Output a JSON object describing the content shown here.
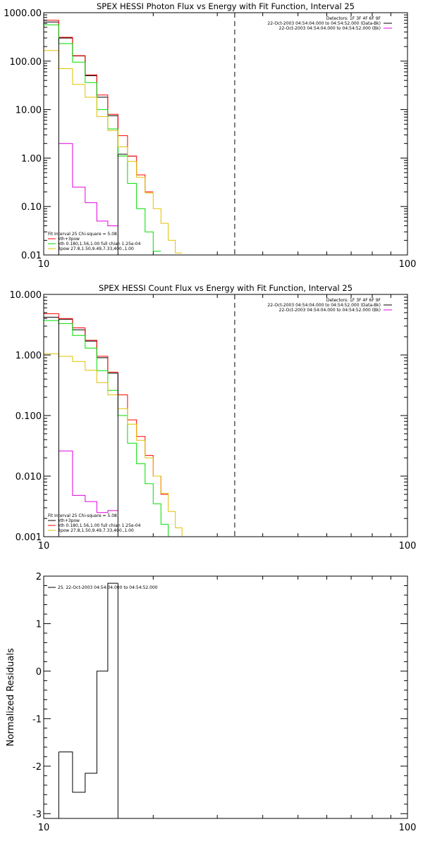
{
  "colors": {
    "axis": "#000000",
    "black": "#000000",
    "red": "#ff0000",
    "green": "#00dd00",
    "yellow": "#e0c000",
    "magenta": "#e000e0"
  },
  "chart_data": [
    {
      "type": "line",
      "step": true,
      "title": "SPEX HESSI Photon Flux vs Energy with Fit Function, Interval 25",
      "xlabel": "",
      "ylabel": "",
      "xscale": "log",
      "yscale": "log",
      "xlim": [
        10,
        100
      ],
      "ylim": [
        0.01,
        1000
      ],
      "xticks": [
        {
          "v": 10,
          "label": "10"
        },
        {
          "v": 100,
          "label": "100"
        }
      ],
      "yticks": [
        {
          "v": 1000,
          "label": "1000.00"
        },
        {
          "v": 100,
          "label": "100.00"
        },
        {
          "v": 10,
          "label": "10.00"
        },
        {
          "v": 1,
          "label": "1.00"
        },
        {
          "v": 0.1,
          "label": "0.10"
        },
        {
          "v": 0.01,
          "label": "0.01"
        }
      ],
      "dashed_vline_x": 33.5,
      "header_lines": [
        "Detectors: 1F 3F 4F 6F 9F",
        "22-Oct-2003 04:54:04.000 to 04:54:52.000 (Data-Bk)",
        "22-Oct-2003 04:54:04.000 to 04:54:52.000 (Bk)"
      ],
      "header_colors": [
        "",
        "#000000",
        "#e000e0"
      ],
      "legend_position": "bottom-left",
      "legend_lines": [
        "Fit Interval 25   Chi-square = 5.08",
        "vth+3pow",
        "vth 0.180,1.56,1.00  full chian 1.25e-04",
        "3pow 27.8,1.50,9.49,7.33,400.,1.00"
      ],
      "legend_colors": [
        "",
        "#ff0000",
        "#00dd00",
        "#e0c000"
      ],
      "edges": [
        10,
        11,
        12,
        13,
        14,
        15,
        16,
        17,
        18,
        19,
        20,
        21,
        22,
        23,
        24,
        25,
        26,
        27,
        28,
        29,
        30,
        31,
        32,
        33,
        34,
        35,
        36,
        37,
        38
      ],
      "series": [
        {
          "color": "#000000",
          "from": 0,
          "values": [
            640,
            300,
            128,
            50,
            18,
            7.5,
            1.2,
            1.1
          ]
        },
        {
          "color": "#ff0000",
          "from": 0,
          "values": [
            700,
            310,
            130,
            52,
            20,
            8.0,
            2.9,
            1.1,
            0.45,
            0.2
          ]
        },
        {
          "color": "#00dd00",
          "from": 0,
          "values": [
            560,
            230,
            95,
            36,
            10,
            4.0,
            1.1,
            0.3,
            0.09,
            0.03,
            0.012
          ]
        },
        {
          "color": "#e0c000",
          "from": 0,
          "values": [
            165,
            70,
            33,
            18,
            7.2,
            3.7,
            1.7,
            0.85,
            0.4,
            0.19,
            0.09,
            0.045,
            0.02,
            0.011
          ]
        },
        {
          "color": "#e000e0",
          "from": 1,
          "values": [
            2.0,
            0.25,
            0.12,
            0.05,
            0.04
          ]
        }
      ],
      "black_drops": [
        {
          "x": 11,
          "to": 0.01
        },
        {
          "x": 16,
          "to": 0.01
        }
      ]
    },
    {
      "type": "line",
      "step": true,
      "title": "SPEX HESSI Count Flux vs Energy with Fit Function, Interval 25",
      "xlabel": "",
      "ylabel": "",
      "xscale": "log",
      "yscale": "log",
      "xlim": [
        10,
        100
      ],
      "ylim": [
        0.001,
        10
      ],
      "xticks": [
        {
          "v": 10,
          "label": "10"
        },
        {
          "v": 100,
          "label": "100"
        }
      ],
      "yticks": [
        {
          "v": 10,
          "label": "10.000"
        },
        {
          "v": 1,
          "label": "1.000"
        },
        {
          "v": 0.1,
          "label": "0.100"
        },
        {
          "v": 0.01,
          "label": "0.010"
        },
        {
          "v": 0.001,
          "label": "0.001"
        }
      ],
      "dashed_vline_x": 33.5,
      "header_lines": [
        "Detectors: 1F 3F 4F 6F 9F",
        "22-Oct-2003 04:54:04.000 to 04:54:52.000 (Data-Bk)",
        "22-Oct-2003 04:54:04.000 to 04:54:52.000 (Bk)"
      ],
      "header_colors": [
        "",
        "#000000",
        "#e000e0"
      ],
      "legend_position": "bottom-left",
      "legend_lines": [
        "Fit Interval 25   Chi-square = 5.08",
        "vth+3pow",
        "vth 0.180,1.56,1.00  full chian 1.25e-04",
        "3pow 27.8,1.50,9.49,7.33,400.,1.00"
      ],
      "legend_colors": [
        "",
        "#000000",
        "#ff0000",
        "#e0c000"
      ],
      "edges": [
        10,
        11,
        12,
        13,
        14,
        15,
        16,
        17,
        18,
        19,
        20,
        21,
        22,
        23,
        24,
        25,
        26,
        27,
        28,
        29,
        30,
        31,
        32,
        33,
        34,
        35,
        36,
        37,
        38
      ],
      "series": [
        {
          "color": "#000000",
          "from": 0,
          "values": [
            4.2,
            3.9,
            2.6,
            1.7,
            0.9,
            0.5
          ]
        },
        {
          "color": "#ff0000",
          "from": 0,
          "values": [
            4.8,
            4.0,
            2.8,
            1.75,
            0.95,
            0.52,
            0.22,
            0.085,
            0.045,
            0.022,
            0.01,
            0.005
          ]
        },
        {
          "color": "#00dd00",
          "from": 0,
          "values": [
            3.7,
            3.3,
            2.1,
            1.3,
            0.55,
            0.26,
            0.1,
            0.035,
            0.016,
            0.0075,
            0.0035,
            0.0016,
            0.001
          ]
        },
        {
          "color": "#e0c000",
          "from": 0,
          "values": [
            1.05,
            0.95,
            0.78,
            0.56,
            0.35,
            0.22,
            0.13,
            0.072,
            0.039,
            0.02,
            0.01,
            0.0052,
            0.0026,
            0.0014,
            0.001
          ]
        },
        {
          "color": "#e000e0",
          "from": 1,
          "values": [
            0.026,
            0.0048,
            0.0038,
            0.0025,
            0.0027
          ]
        }
      ],
      "black_drops": [
        {
          "x": 11,
          "to": 0.001
        },
        {
          "x": 16,
          "to": 0.001
        }
      ]
    },
    {
      "type": "line",
      "step": true,
      "title": "",
      "xlabel": "",
      "ylabel": "Normalized Residuals",
      "xscale": "log",
      "yscale": "linear",
      "xlim": [
        10,
        100
      ],
      "ylim": [
        -3.1,
        2.0
      ],
      "xticks": [
        {
          "v": 10,
          "label": "10"
        },
        {
          "v": 100,
          "label": "100"
        }
      ],
      "yticks": [
        {
          "v": 2,
          "label": "2"
        },
        {
          "v": 1,
          "label": "1"
        },
        {
          "v": 0,
          "label": "0"
        },
        {
          "v": -1,
          "label": "-1"
        },
        {
          "v": -2,
          "label": "-2"
        },
        {
          "v": -3,
          "label": "-3"
        }
      ],
      "legend_position": "top-left",
      "legend_lines": [
        "25. 22-Oct-2003 04:54:04.000 to 04:54:52.000"
      ],
      "legend_colors": [
        "#000000"
      ],
      "edges": [
        10,
        11,
        12,
        13,
        14,
        15,
        16,
        17,
        18,
        19,
        20,
        21,
        22,
        23,
        24,
        25,
        26,
        27,
        28,
        29,
        30,
        31,
        32,
        33,
        34,
        35,
        36,
        37,
        38
      ],
      "series": [
        {
          "color": "#000000",
          "from": 1,
          "values": [
            -1.7,
            -2.55,
            -2.15,
            0.0,
            1.85
          ]
        }
      ],
      "black_drops": [
        {
          "x": 11,
          "to": -3.1
        },
        {
          "x": 16,
          "to": -3.1
        }
      ]
    }
  ]
}
